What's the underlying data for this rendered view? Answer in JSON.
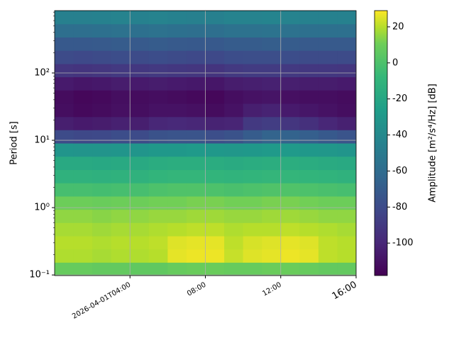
{
  "chart_data": {
    "type": "heatmap",
    "xlabel_rotation": 30,
    "ylabel": "Period [s]",
    "colorbar_label": "Amplitude [m²/s⁴/Hz] [dB]",
    "colormap": "viridis",
    "clim": [
      -118,
      29
    ],
    "cticks": [
      -100,
      -80,
      -60,
      -40,
      -20,
      0,
      20
    ],
    "yscale": "log",
    "grid": true,
    "x": [
      "2026-04-01T00:00",
      "2026-04-01T01:00",
      "2026-04-01T02:00",
      "2026-04-01T03:00",
      "2026-04-01T04:00",
      "2026-04-01T05:00",
      "2026-04-01T06:00",
      "2026-04-01T07:00",
      "2026-04-01T08:00",
      "2026-04-01T09:00",
      "2026-04-01T10:00",
      "2026-04-01T11:00",
      "2026-04-01T12:00",
      "2026-04-01T13:00",
      "2026-04-01T14:00",
      "2026-04-01T15:00",
      "2026-04-01T16:00"
    ],
    "xlim": [
      "2026-04-01T00:00",
      "2026-04-01T16:00"
    ],
    "xticks": [
      {
        "value": "2026-04-01T04:00",
        "label": "2026-04-01T04:00"
      },
      {
        "value": "2026-04-01T08:00",
        "label": "08:00"
      },
      {
        "value": "2026-04-01T12:00",
        "label": "12:00"
      },
      {
        "value": "2026-04-01T16:00",
        "label": "16:00"
      }
    ],
    "y": [
      0.098,
      0.154,
      0.242,
      0.38,
      0.598,
      0.94,
      1.48,
      2.33,
      3.66,
      5.77,
      9.08,
      14.3,
      22.4,
      35.3,
      55.6,
      87.5,
      137,
      216,
      340,
      536,
      843
    ],
    "ylim": [
      0.098,
      843
    ],
    "yticks": [
      {
        "value": 0.1,
        "label": "10⁻¹"
      },
      {
        "value": 1,
        "label": "10⁰"
      },
      {
        "value": 10,
        "label": "10¹"
      },
      {
        "value": 100,
        "label": "10²"
      }
    ],
    "values": [
      [
        8,
        8,
        7,
        7,
        6,
        6,
        8,
        9,
        9,
        8,
        8,
        9,
        9,
        8,
        7,
        7
      ],
      [
        19,
        19,
        18,
        19,
        19,
        20,
        26,
        27,
        27,
        22,
        25,
        26,
        27,
        26,
        21,
        20
      ],
      [
        20,
        20,
        19,
        20,
        20,
        21,
        25,
        26,
        26,
        21,
        24,
        25,
        26,
        25,
        21,
        20
      ],
      [
        18,
        18,
        17,
        18,
        18,
        19,
        20,
        21,
        21,
        19,
        20,
        20,
        21,
        20,
        19,
        18
      ],
      [
        15,
        15,
        14,
        15,
        15,
        16,
        16,
        17,
        17,
        16,
        16,
        17,
        17,
        16,
        15,
        15
      ],
      [
        10,
        10,
        9,
        10,
        10,
        11,
        11,
        12,
        12,
        11,
        11,
        12,
        12,
        11,
        10,
        10
      ],
      [
        -2,
        -2,
        -3,
        -2,
        -2,
        0,
        1,
        1,
        0,
        -1,
        0,
        1,
        1,
        0,
        -1,
        -2
      ],
      [
        -12,
        -12,
        -13,
        -12,
        -12,
        -10,
        -9,
        -9,
        -10,
        -11,
        -10,
        -9,
        -9,
        -10,
        -11,
        -12
      ],
      [
        -18,
        -18,
        -19,
        -18,
        -18,
        -16,
        -15,
        -15,
        -16,
        -17,
        -16,
        -15,
        -15,
        -16,
        -17,
        -18
      ],
      [
        -32,
        -33,
        -33,
        -32,
        -32,
        -30,
        -30,
        -29,
        -30,
        -31,
        -30,
        -29,
        -29,
        -30,
        -31,
        -32
      ],
      [
        -80,
        -82,
        -81,
        -79,
        -80,
        -76,
        -75,
        -75,
        -78,
        -76,
        -70,
        -65,
        -66,
        -68,
        -72,
        -75
      ],
      [
        -104,
        -106,
        -105,
        -103,
        -104,
        -100,
        -99,
        -100,
        -102,
        -101,
        -90,
        -88,
        -92,
        -95,
        -100,
        -103
      ],
      [
        -112,
        -114,
        -113,
        -111,
        -112,
        -110,
        -110,
        -111,
        -113,
        -110,
        -104,
        -102,
        -106,
        -108,
        -110,
        -112
      ],
      [
        -113,
        -115,
        -114,
        -112,
        -113,
        -112,
        -113,
        -114,
        -115,
        -112,
        -110,
        -109,
        -111,
        -112,
        -112,
        -113
      ],
      [
        -106,
        -108,
        -107,
        -105,
        -106,
        -105,
        -106,
        -107,
        -108,
        -105,
        -104,
        -103,
        -104,
        -105,
        -105,
        -106
      ],
      [
        -92,
        -93,
        -92,
        -90,
        -91,
        -90,
        -91,
        -92,
        -93,
        -90,
        -89,
        -89,
        -90,
        -91,
        -91,
        -92
      ],
      [
        -80,
        -81,
        -80,
        -79,
        -80,
        -79,
        -80,
        -81,
        -81,
        -79,
        -78,
        -78,
        -79,
        -80,
        -80,
        -80
      ],
      [
        -72,
        -72,
        -71,
        -70,
        -71,
        -70,
        -71,
        -72,
        -72,
        -70,
        -70,
        -69,
        -70,
        -71,
        -71,
        -71
      ],
      [
        -58,
        -58,
        -57,
        -56,
        -57,
        -56,
        -57,
        -58,
        -58,
        -56,
        -56,
        -55,
        -56,
        -57,
        -57,
        -57
      ],
      [
        -46,
        -46,
        -45,
        -44,
        -45,
        -44,
        -45,
        -46,
        -46,
        -44,
        -44,
        -43,
        -44,
        -45,
        -45,
        -45
      ]
    ]
  }
}
